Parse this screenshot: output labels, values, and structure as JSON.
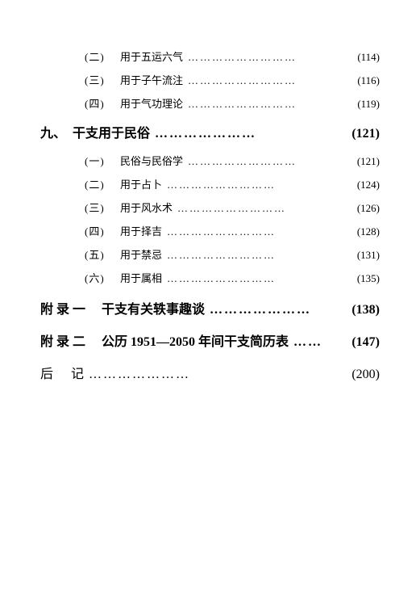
{
  "dot_char": "…",
  "dot_repeat_long": 9,
  "dot_repeat_mid": 7,
  "dot_repeat_short": 2,
  "entries": [
    {
      "type": "sub",
      "num": "(二)",
      "title": "用于五运六气",
      "page": "(114)"
    },
    {
      "type": "sub",
      "num": "(三)",
      "title": "用于子午流注",
      "page": "(116)"
    },
    {
      "type": "sub",
      "num": "(四)",
      "title": "用于气功理论",
      "page": "(119)"
    },
    {
      "type": "chapter",
      "num": "九、",
      "title": "干支用于民俗",
      "page": "(121)"
    },
    {
      "type": "sub",
      "num": "(一)",
      "title": "民俗与民俗学",
      "page": "(121)"
    },
    {
      "type": "sub",
      "num": "(二)",
      "title": "用于占卜",
      "page": "(124)"
    },
    {
      "type": "sub",
      "num": "(三)",
      "title": "用于风水术",
      "page": "(126)"
    },
    {
      "type": "sub",
      "num": "(四)",
      "title": "用于择吉",
      "page": "(128)"
    },
    {
      "type": "sub",
      "num": "(五)",
      "title": "用于禁忌",
      "page": "(131)"
    },
    {
      "type": "sub",
      "num": "(六)",
      "title": "用于属相",
      "page": "(135)"
    },
    {
      "type": "appendix",
      "num": "附录一",
      "title": "干支有关轶事趣谈",
      "page": "(138)"
    },
    {
      "type": "appendix",
      "num": "附录二",
      "title": "公历 1951—2050 年间干支简历表",
      "page": "(147)"
    },
    {
      "type": "afterword",
      "num": "后",
      "title": "记",
      "page": "(200)"
    }
  ]
}
